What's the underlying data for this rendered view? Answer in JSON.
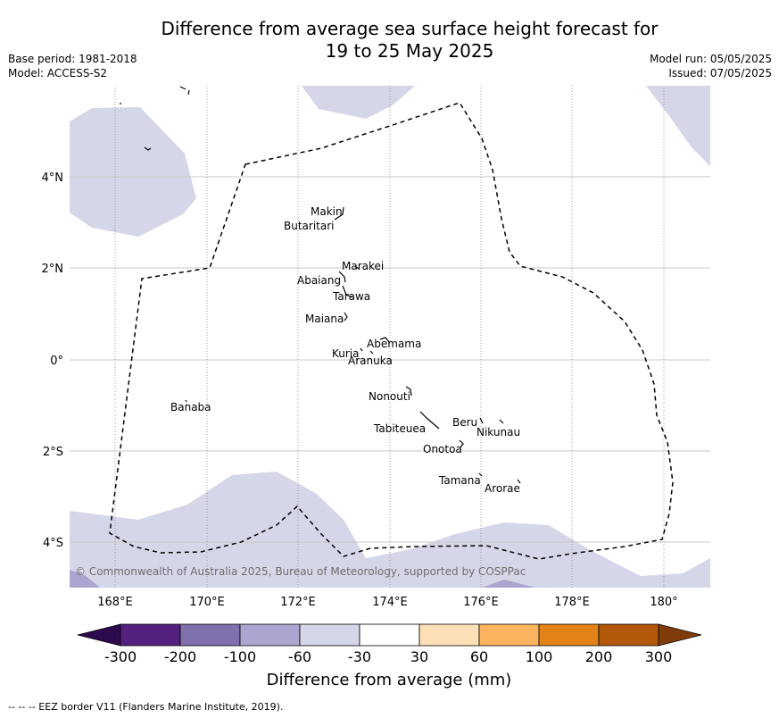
{
  "header": {
    "title_line1": "Difference from average sea surface height forecast for",
    "title_line2": "19 to 25 May 2025",
    "base_period": "Base period: 1981-2018",
    "model": "Model: ACCESS-S2",
    "model_run": "Model run: 05/05/2025",
    "issued": "Issued: 07/05/2025"
  },
  "map": {
    "lat_labels": [
      "4°N",
      "2°N",
      "0°",
      "2°S",
      "4°S"
    ],
    "lon_labels": [
      "168°E",
      "170°E",
      "172°E",
      "174°E",
      "176°E",
      "178°E",
      "180°"
    ],
    "copyright": "© Commonwealth of Australia 2025, Bureau of Meteorology, supported by COSPPac",
    "islands": [
      "Makin",
      "Butaritari",
      "Marakei",
      "Abaiang",
      "Tarawa",
      "Maiana",
      "Abemama",
      "Kuria",
      "Aranuka",
      "Banaba",
      "Nonouti",
      "Tabiteuea",
      "Beru",
      "Nikunau",
      "Onotoa",
      "Tamana",
      "Arorae"
    ]
  },
  "colorbar": {
    "tick_labels": [
      "-300",
      "-200",
      "-100",
      "-60",
      "-30",
      "30",
      "60",
      "100",
      "200",
      "300"
    ],
    "colors": [
      "#2d0a4e",
      "#54217f",
      "#7f70ae",
      "#aba6cf",
      "#d6d6e9",
      "#ffffff",
      "#fee0b7",
      "#fdb45f",
      "#e38317",
      "#b35806",
      "#7f3b08"
    ],
    "label": "Difference from average (mm)"
  },
  "footer": {
    "legend": "--  --  -- EEZ border V11 (Flanders Marine Institute, 2019)."
  }
}
